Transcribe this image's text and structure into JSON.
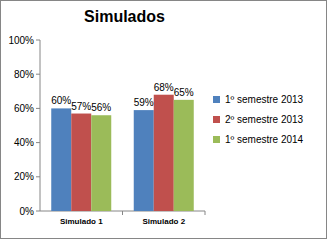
{
  "chart_data": {
    "type": "bar",
    "title": "Simulados",
    "categories": [
      "Simulado 1",
      "Simulado 2"
    ],
    "series": [
      {
        "name": "1º semestre 2013",
        "color": "#4f81bd",
        "values": [
          60,
          59
        ],
        "value_labels": [
          "60%",
          "59%"
        ]
      },
      {
        "name": "2º semestre 2013",
        "color": "#c0504d",
        "values": [
          57,
          68
        ],
        "value_labels": [
          "57%",
          "68%"
        ]
      },
      {
        "name": "1º semestre 2014",
        "color": "#9bbb59",
        "values": [
          56,
          65
        ],
        "value_labels": [
          "56%",
          "65%"
        ]
      }
    ],
    "ylim": [
      0,
      100
    ],
    "yticks": [
      {
        "value": 0,
        "label": "0%"
      },
      {
        "value": 20,
        "label": "20%"
      },
      {
        "value": 40,
        "label": "40%"
      },
      {
        "value": 60,
        "label": "60%"
      },
      {
        "value": 80,
        "label": "80%"
      },
      {
        "value": 100,
        "label": "100%"
      }
    ],
    "grid": false,
    "legend": "right",
    "data_labels": true
  }
}
